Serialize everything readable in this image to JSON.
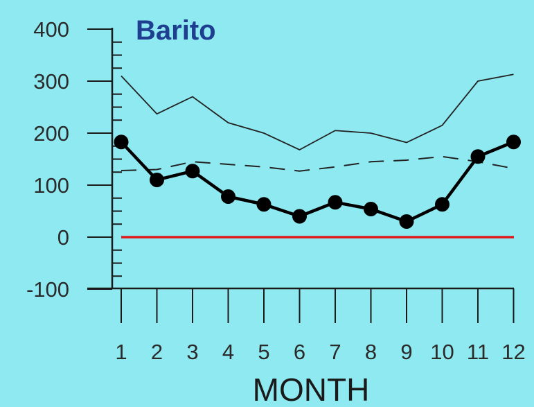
{
  "chart_data": {
    "type": "line",
    "title": "Barito",
    "xlabel": "MONTH",
    "ylabel": "",
    "x": [
      1,
      2,
      3,
      4,
      5,
      6,
      7,
      8,
      9,
      10,
      11,
      12
    ],
    "xticks": [
      "1",
      "2",
      "3",
      "4",
      "5",
      "6",
      "7",
      "8",
      "9",
      "10",
      "11",
      "12"
    ],
    "yticks": [
      "400",
      "300",
      "200",
      "100",
      "0",
      "-100"
    ],
    "ylim": [
      -100,
      400
    ],
    "grid": false,
    "series": [
      {
        "style": "thin-solid",
        "color": "#222222",
        "values": [
          310,
          237,
          270,
          220,
          200,
          168,
          205,
          200,
          182,
          215,
          300,
          313
        ]
      },
      {
        "style": "dashed",
        "color": "#222222",
        "values": [
          128,
          130,
          145,
          140,
          135,
          127,
          135,
          145,
          148,
          155,
          145,
          132
        ]
      },
      {
        "style": "thick-markers",
        "color": "#000000",
        "values": [
          183,
          110,
          127,
          78,
          63,
          40,
          67,
          54,
          30,
          63,
          155,
          183
        ]
      }
    ],
    "reference_line": {
      "value": 0,
      "color": "#e0191f"
    }
  }
}
